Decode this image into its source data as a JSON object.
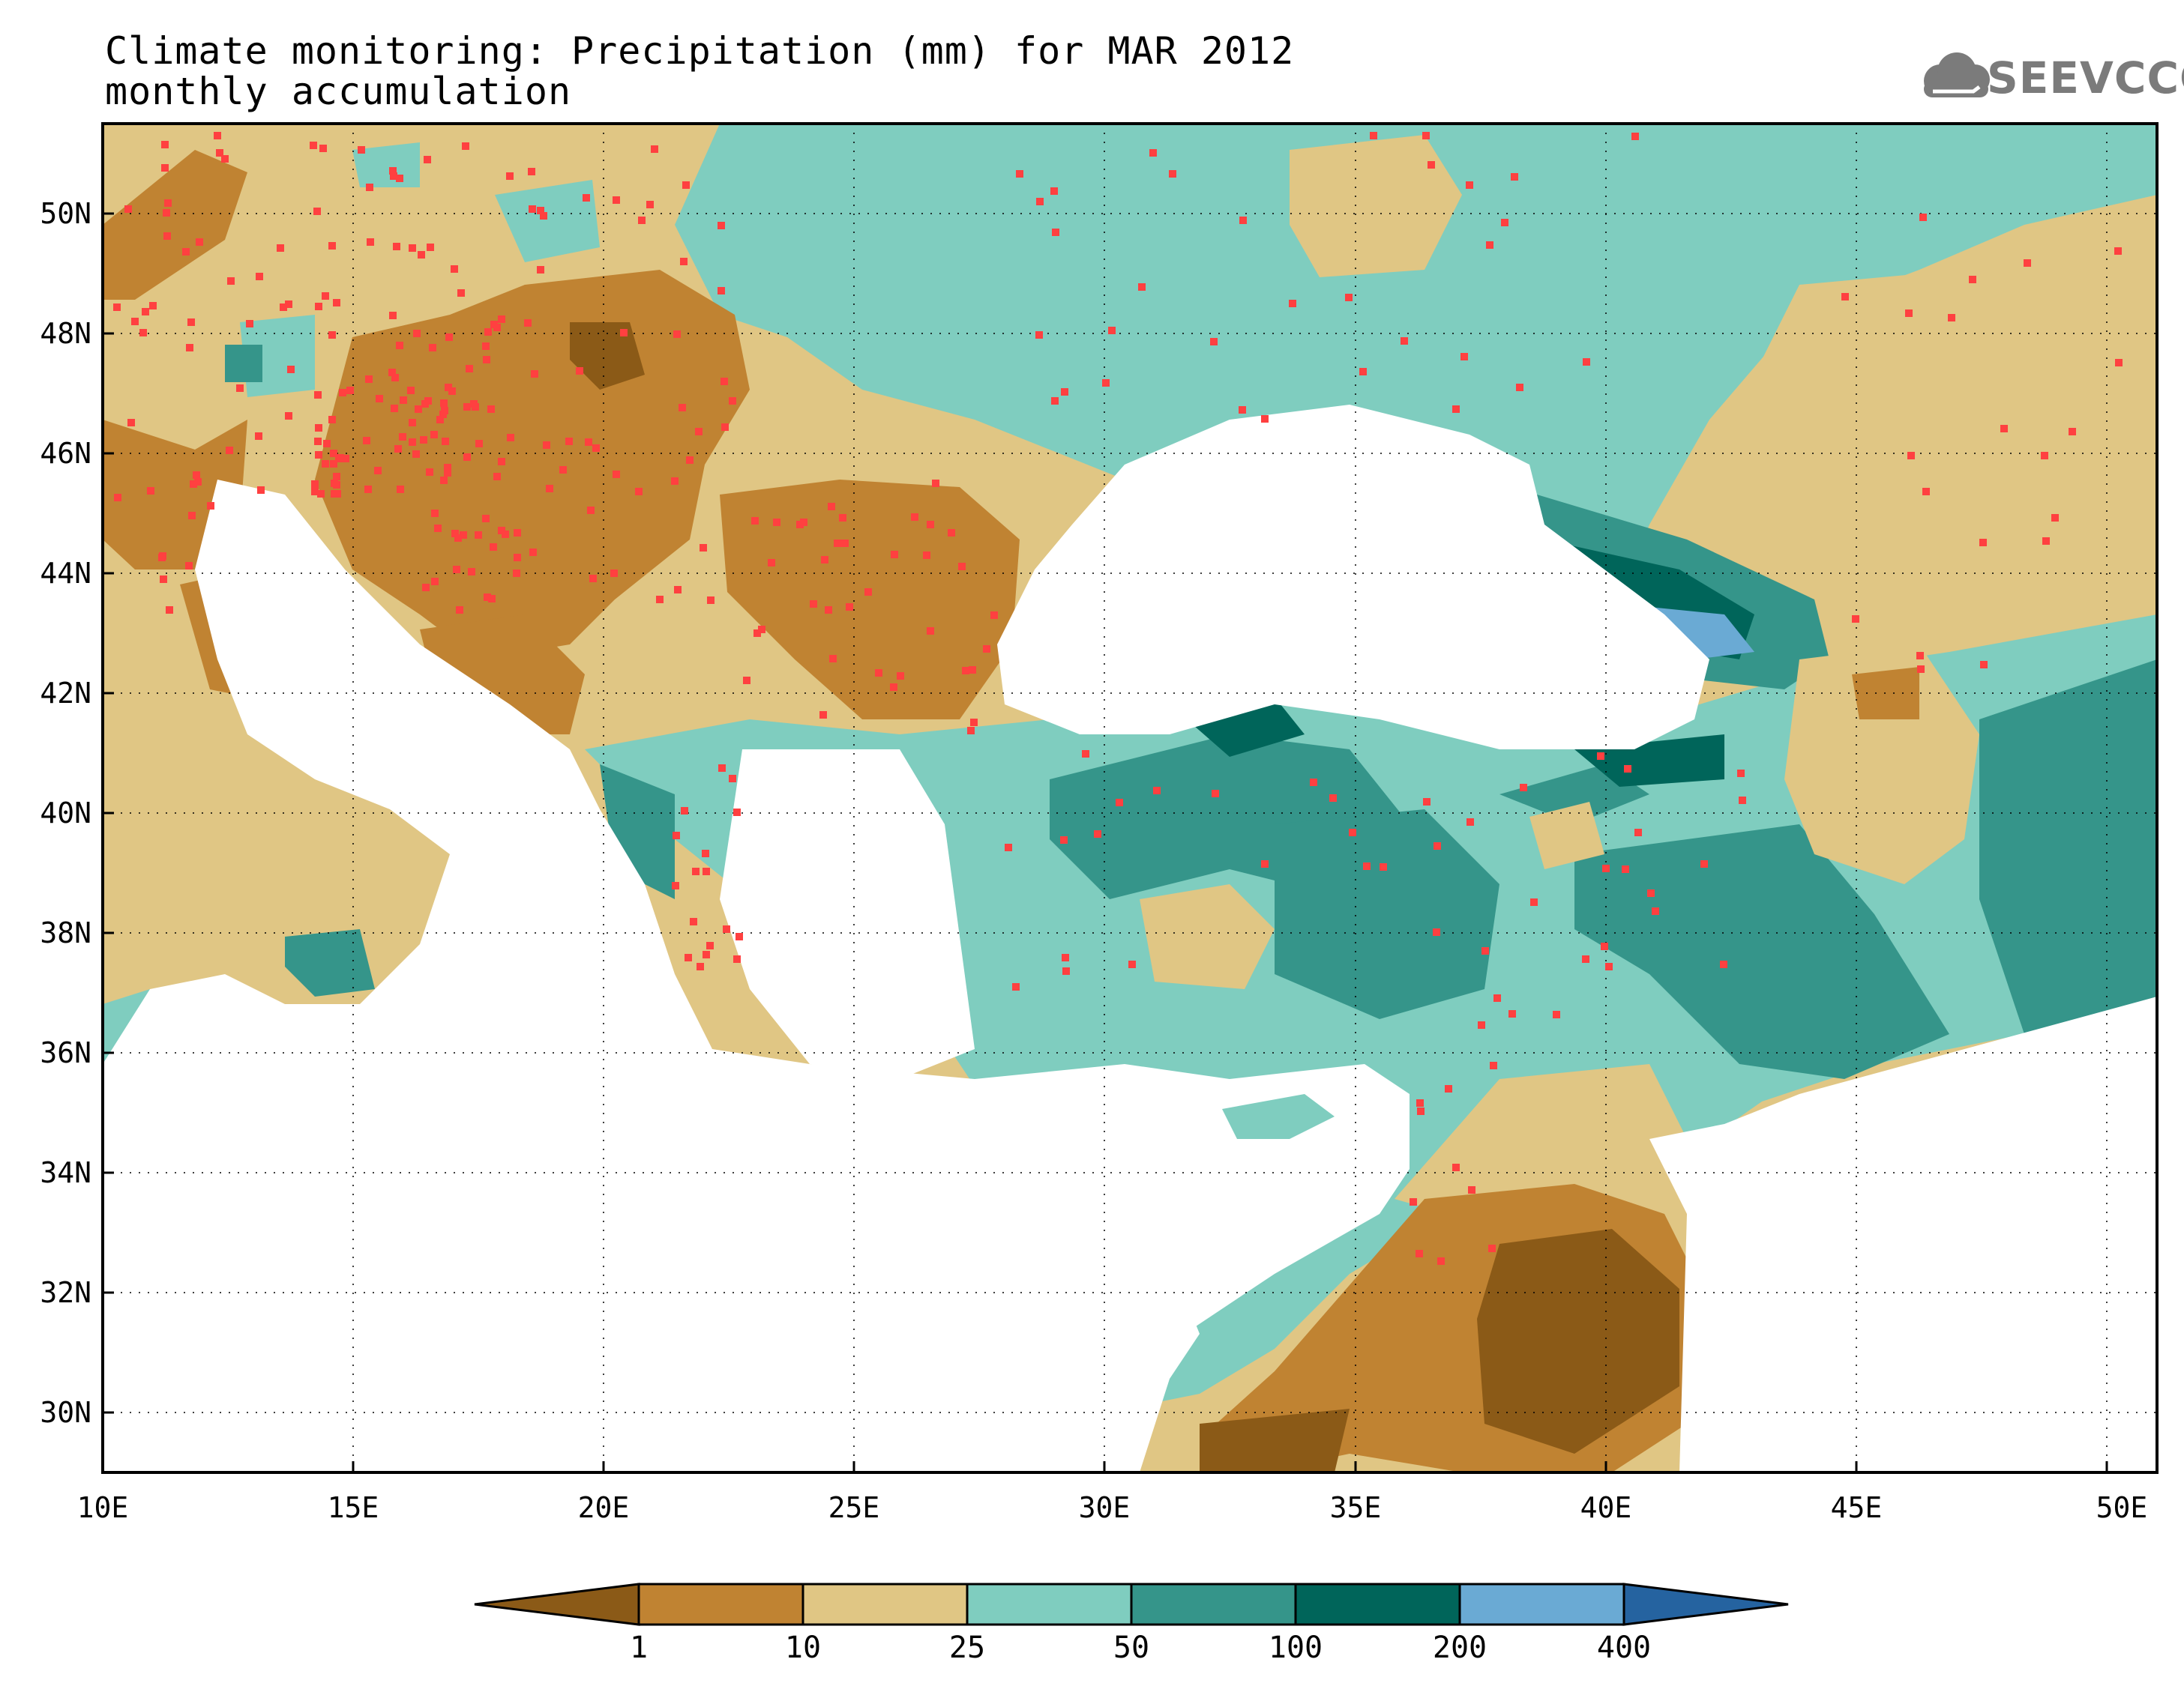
{
  "title": "Climate monitoring: Precipitation (mm) for MAR 2012",
  "subtitle": "monthly accumulation",
  "logo_text": "SEEVCCC",
  "map": {
    "lon_range": [
      10,
      51
    ],
    "lat_range": [
      29,
      51.5
    ],
    "lon_ticks": [
      "10E",
      "15E",
      "20E",
      "25E",
      "30E",
      "35E",
      "40E",
      "45E",
      "50E"
    ],
    "lat_ticks": [
      "30N",
      "32N",
      "34N",
      "36N",
      "38N",
      "40N",
      "42N",
      "44N",
      "46N",
      "48N",
      "50N"
    ],
    "gridlines": "dotted"
  },
  "colorbar": {
    "levels": [
      "1",
      "10",
      "25",
      "50",
      "100",
      "200",
      "400"
    ],
    "colors": [
      "#8b5a17",
      "#c08332",
      "#e0c684",
      "#7fcdbf",
      "#35958a",
      "#00655a",
      "#6aaad4",
      "#2563a0"
    ],
    "unit": "mm"
  },
  "palette": {
    "very_dry": "#8b5a17",
    "dry": "#c08332",
    "below": "#e0c684",
    "mid": "#7fcdbf",
    "wet": "#35958a",
    "very_wet": "#00655a",
    "extreme": "#6aaad4",
    "station": "#ff4040"
  }
}
